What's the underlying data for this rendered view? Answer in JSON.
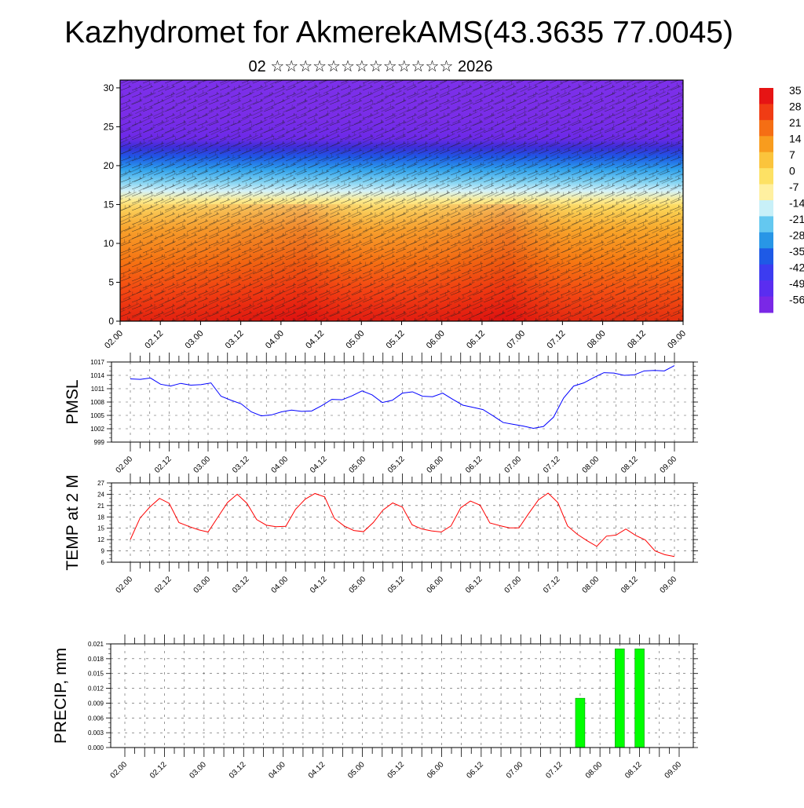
{
  "title": "Kazhydromet for AkmerekAMS(43.3635 77.0045)",
  "subtitle": "02 ☆☆☆☆☆☆☆☆☆☆☆☆☆ 2026",
  "time_ticks": [
    "02.00",
    "02.12",
    "03.00",
    "03.12",
    "04.00",
    "04.12",
    "05.00",
    "05.12",
    "06.00",
    "06.12",
    "07.00",
    "07.12",
    "08.00",
    "08.12",
    "09.00"
  ],
  "chart_data": [
    {
      "type": "heatmap",
      "name": "temperature-wind-cross-section",
      "ylim": [
        0,
        31
      ],
      "yticks": [
        0,
        5,
        10,
        15,
        20,
        25,
        30
      ],
      "colorbar": {
        "labels": [
          "35",
          "28",
          "21",
          "14",
          "7",
          "0",
          "-7",
          "-14",
          "-21",
          "-28",
          "-35",
          "-42",
          "-49",
          "-56"
        ],
        "colors": [
          "#e61414",
          "#f03c14",
          "#f56e14",
          "#f89c1e",
          "#fbc43c",
          "#fde164",
          "#fff0a0",
          "#c8f0f8",
          "#64c8f0",
          "#2896e6",
          "#1e5ae6",
          "#3c3cf0",
          "#5a2df0",
          "#7a28e6"
        ]
      }
    },
    {
      "type": "line",
      "name": "pmsl",
      "ylabel": "PMSL",
      "ylim": [
        999,
        1017
      ],
      "yticks": [
        999,
        1002,
        1005,
        1008,
        1011,
        1014,
        1017
      ],
      "color": "#0000ff",
      "values": [
        1013.2,
        1013.1,
        1013.4,
        1012.0,
        1011.6,
        1012.2,
        1011.8,
        1011.9,
        1012.3,
        1009.3,
        1008.4,
        1007.6,
        1005.8,
        1004.9,
        1005.1,
        1005.8,
        1006.2,
        1005.9,
        1006.0,
        1007.2,
        1008.6,
        1008.5,
        1009.4,
        1010.5,
        1009.6,
        1007.9,
        1008.4,
        1010.0,
        1010.3,
        1009.3,
        1009.2,
        1010.0,
        1008.6,
        1007.3,
        1006.8,
        1006.3,
        1004.9,
        1003.4,
        1003.0,
        1002.6,
        1002.1,
        1002.5,
        1004.6,
        1008.9,
        1011.6,
        1012.3,
        1013.5,
        1014.6,
        1014.5,
        1014.0,
        1014.1,
        1015.0,
        1015.1,
        1015.0,
        1016.2
      ]
    },
    {
      "type": "line",
      "name": "temp-2m",
      "ylabel": "TEMP at 2 M",
      "ylim": [
        6,
        27
      ],
      "yticks": [
        6,
        9,
        12,
        15,
        18,
        21,
        24,
        27
      ],
      "color": "#ff0000",
      "values": [
        12.0,
        17.7,
        20.6,
        22.9,
        21.6,
        16.5,
        15.5,
        14.6,
        14.0,
        17.9,
        21.8,
        24.0,
        21.6,
        17.3,
        15.8,
        15.4,
        15.5,
        20.0,
        22.7,
        24.2,
        23.3,
        17.6,
        15.6,
        14.4,
        14.1,
        16.5,
        19.8,
        21.7,
        20.6,
        15.9,
        14.8,
        14.3,
        14.0,
        15.6,
        20.4,
        22.2,
        21.1,
        16.4,
        15.7,
        15.1,
        15.1,
        18.9,
        22.5,
        24.3,
        21.8,
        15.6,
        13.4,
        11.7,
        10.2,
        12.9,
        13.2,
        14.8,
        13.1,
        11.9,
        9.0,
        8.0,
        7.5
      ]
    },
    {
      "type": "bar",
      "name": "precip",
      "ylabel": "PRECIP, mm",
      "ylim": [
        0,
        0.021
      ],
      "yticks": [
        "0.000",
        "0.003",
        "0.006",
        "0.009",
        "0.012",
        "0.015",
        "0.018",
        "0.021"
      ],
      "color": "#00ff00",
      "bars": [
        {
          "at": "07.18",
          "value": 0.01
        },
        {
          "at": "08.06",
          "value": 0.02
        },
        {
          "at": "08.12",
          "value": 0.02
        }
      ]
    }
  ]
}
